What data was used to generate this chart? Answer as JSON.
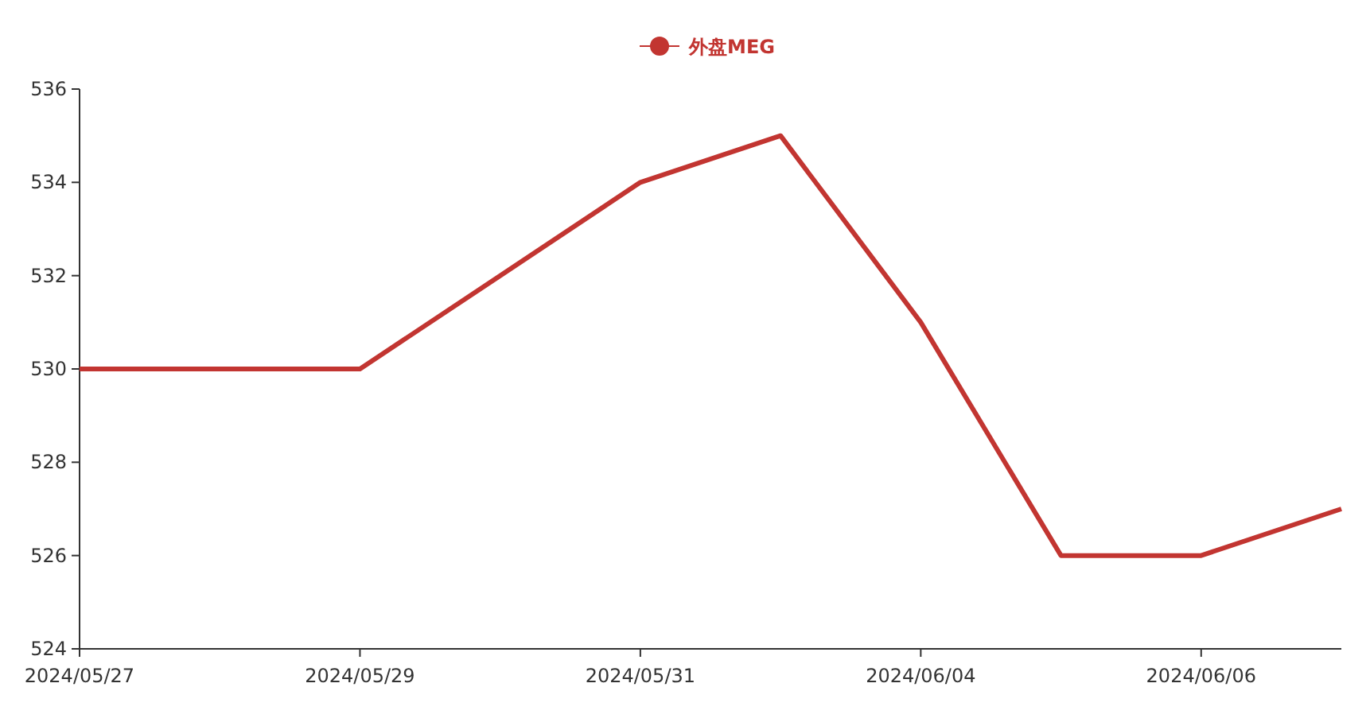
{
  "chart_data": {
    "type": "line",
    "categories": [
      "2024/05/27",
      null,
      "2024/05/29",
      null,
      "2024/05/31",
      null,
      "2024/06/04",
      null,
      "2024/06/06",
      null
    ],
    "series": [
      {
        "name": "外盘MEG",
        "color": "#c23531",
        "values": [
          530,
          530,
          530,
          532,
          534,
          535,
          531,
          526,
          526,
          527
        ]
      }
    ],
    "ylim": [
      524,
      536
    ],
    "yticks": [
      524,
      526,
      528,
      530,
      532,
      534,
      536
    ],
    "legend": "top",
    "marker": "none",
    "line_style": "solid"
  }
}
